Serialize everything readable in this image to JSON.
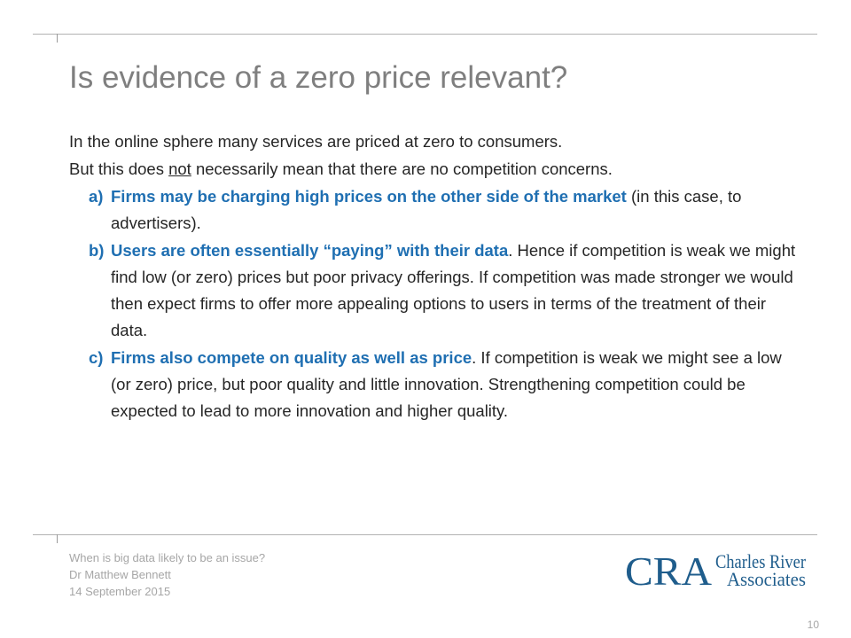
{
  "slide": {
    "title": "Is evidence of a zero price relevant?",
    "para1": "In the online sphere many services are priced at zero to consumers.",
    "para2": {
      "before": "But this does ",
      "underlined": "not",
      "after": " necessarily mean that there are no competition concerns."
    },
    "items": [
      {
        "marker": "a)",
        "lead": "Firms may be charging high prices on the other side of the market",
        "rest": " (in this case, to advertisers)."
      },
      {
        "marker": "b)",
        "lead": "Users are often essentially “paying” with their data",
        "rest": ".  Hence if competition is weak we might find low (or zero) prices but poor privacy offerings.  If competition was made stronger we would then expect firms to offer more appealing options to users in terms of the treatment of their data."
      },
      {
        "marker": "c)",
        "lead": "Firms also compete on quality as well as price",
        "rest": ".  If competition is weak we might see a low (or zero) price, but poor quality and little innovation.  Strengthening competition could be expected to lead to more innovation and higher quality."
      }
    ]
  },
  "footer": {
    "line1": "When is big data likely to be an issue?",
    "line2": "Dr Matthew Bennett",
    "line3": "14 September 2015"
  },
  "logo": {
    "initials": "CRA",
    "line1": "Charles River",
    "line2": "Associates",
    "color": "#1f5d8c"
  },
  "page_number": "10",
  "colors": {
    "accent": "#1f6fb2",
    "title": "#7f7f7f",
    "rule": "#b3b3b3"
  }
}
